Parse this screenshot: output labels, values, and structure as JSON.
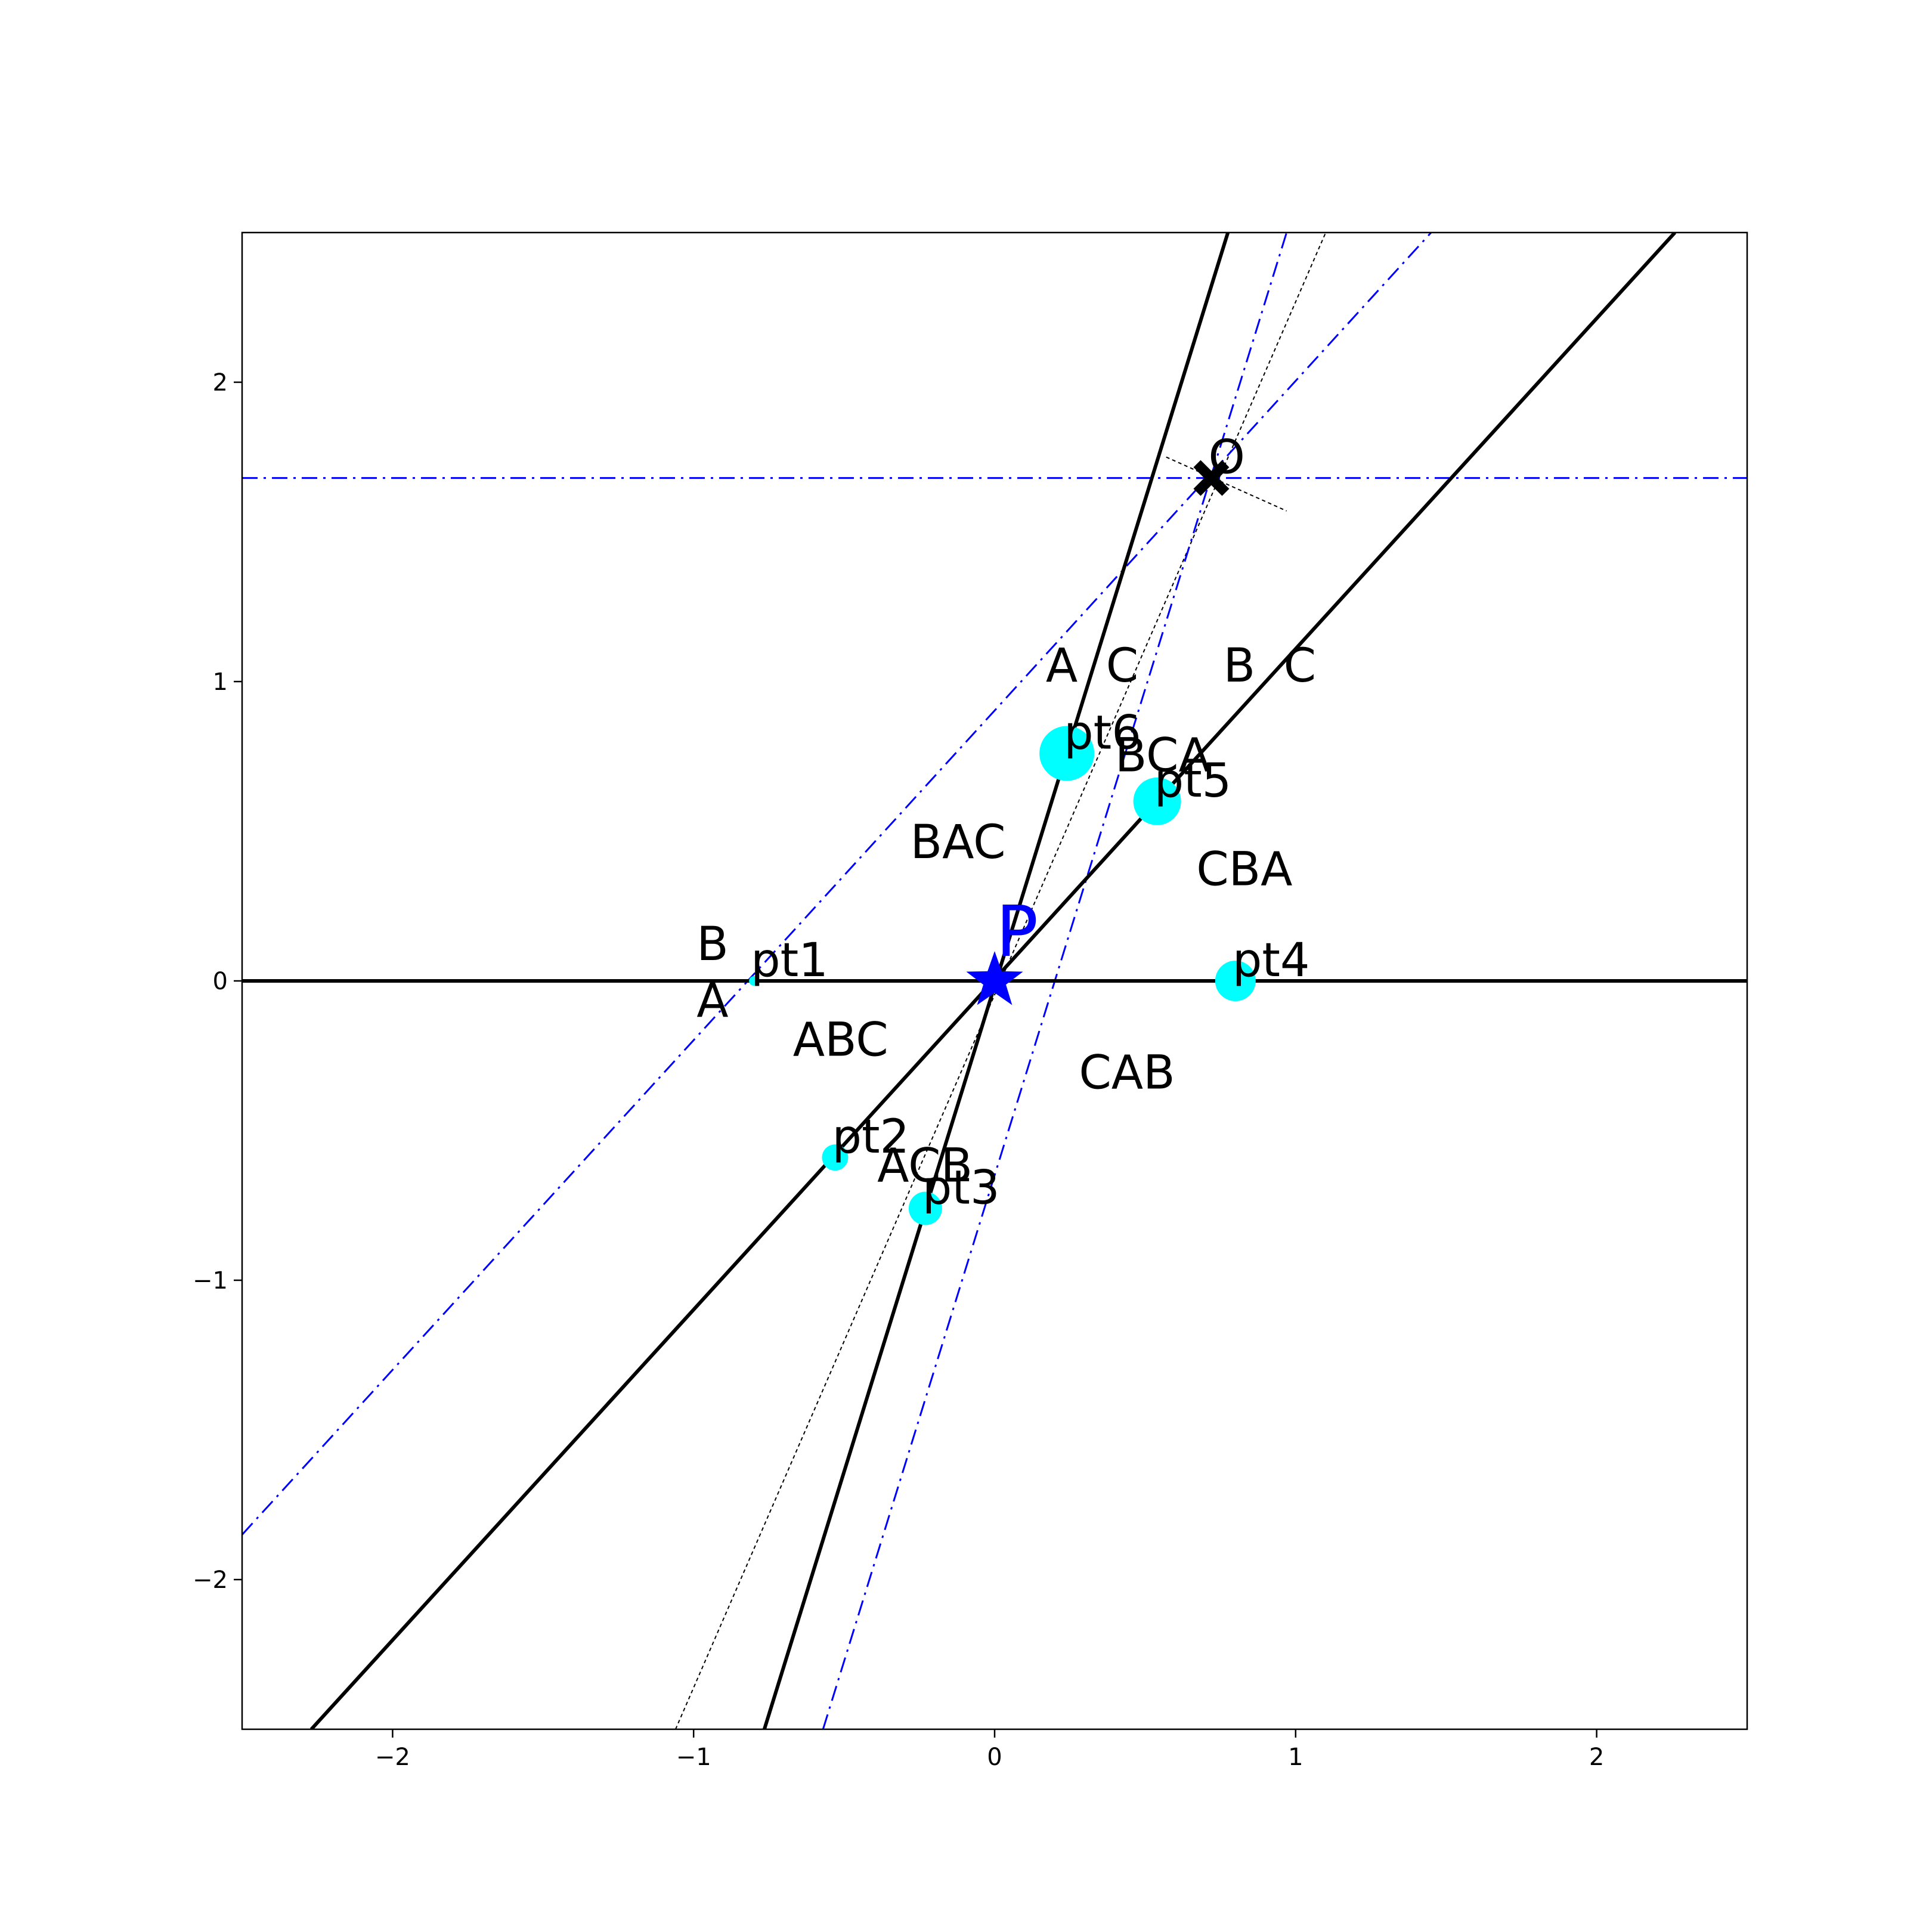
{
  "chart_data": {
    "type": "scatter",
    "title": "",
    "xlabel": "",
    "ylabel": "",
    "xlim": [
      -2.5,
      2.5
    ],
    "ylim": [
      -2.5,
      2.5
    ],
    "grid": false,
    "x_ticks": [
      -2,
      -1,
      0,
      1,
      2
    ],
    "y_ticks": [
      -2,
      -1,
      0,
      1,
      2
    ],
    "x_tick_labels": [
      "−2",
      "−1",
      "0",
      "1",
      "2"
    ],
    "y_tick_labels": [
      "−2",
      "−1",
      "0",
      "1",
      "2"
    ],
    "colors": {
      "solid_lines": "#000000",
      "dashdot_lines": "#0000ff",
      "dotted_lines": "#000000",
      "points": "#00ffff",
      "P_marker": "#0000ff",
      "O_marker": "#000000"
    },
    "solid_lines": [
      {
        "id": "horizontal",
        "x1": -2.5,
        "y1": 0,
        "x2": 2.5,
        "y2": 0
      },
      {
        "id": "steep",
        "x1": -0.765,
        "y1": -2.5,
        "x2": 0.775,
        "y2": 2.5
      },
      {
        "id": "diagonal",
        "x1": -2.27,
        "y1": -2.5,
        "x2": 2.26,
        "y2": 2.5
      }
    ],
    "dashdot_lines": [
      {
        "id": "horizontal-through-O",
        "x1": -2.5,
        "y1": 1.68,
        "x2": 2.5,
        "y2": 1.68
      },
      {
        "id": "diagonal-through-O",
        "x1": -2.5,
        "y1": -1.85,
        "x2": 1.45,
        "y2": 2.5
      },
      {
        "id": "steep-through-O",
        "x1": -0.57,
        "y1": -2.5,
        "x2": 0.97,
        "y2": 2.5
      }
    ],
    "dotted_lines": [
      {
        "id": "P-to-O-bisector",
        "x1": -1.06,
        "y1": -2.5,
        "x2": 1.1,
        "y2": 2.5
      },
      {
        "id": "short-through-O",
        "x1": 0.57,
        "y1": 1.75,
        "x2": 0.97,
        "y2": 1.57
      }
    ],
    "points": [
      {
        "name": "pt1",
        "x": -0.8,
        "y": 0.0,
        "size": 8
      },
      {
        "name": "pt2",
        "x": -0.53,
        "y": -0.59,
        "size": 22
      },
      {
        "name": "pt3",
        "x": -0.23,
        "y": -0.76,
        "size": 28
      },
      {
        "name": "pt4",
        "x": 0.8,
        "y": 0.0,
        "size": 34
      },
      {
        "name": "pt5",
        "x": 0.54,
        "y": 0.6,
        "size": 40
      },
      {
        "name": "pt6",
        "x": 0.24,
        "y": 0.76,
        "size": 46
      }
    ],
    "P": {
      "label": "P",
      "x": 0.0,
      "y": 0.0
    },
    "O": {
      "label": "O",
      "x": 0.72,
      "y": 1.68
    },
    "region_labels": [
      {
        "text": "B",
        "x": -0.99,
        "y": 0.07
      },
      {
        "text": "A",
        "x": -0.99,
        "y": -0.12
      },
      {
        "text": "ABC",
        "x": -0.67,
        "y": -0.25
      },
      {
        "text": "BAC",
        "x": -0.28,
        "y": 0.41
      },
      {
        "text": "CAB",
        "x": 0.28,
        "y": -0.36
      },
      {
        "text": "ACB",
        "x": -0.39,
        "y": -0.67
      },
      {
        "text": "A",
        "x": 0.17,
        "y": 1.0
      },
      {
        "text": "C",
        "x": 0.37,
        "y": 1.0
      },
      {
        "text": "B",
        "x": 0.76,
        "y": 1.0
      },
      {
        "text": "C",
        "x": 0.96,
        "y": 1.0
      },
      {
        "text": "BCA",
        "x": 0.4,
        "y": 0.7
      },
      {
        "text": "CBA",
        "x": 0.67,
        "y": 0.32
      }
    ]
  }
}
